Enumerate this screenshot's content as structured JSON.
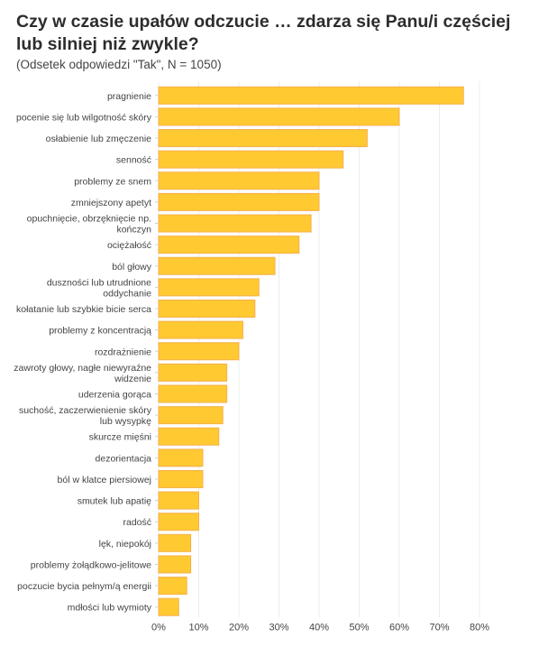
{
  "chart_data": {
    "type": "bar",
    "orientation": "horizontal",
    "title": "Czy w czasie upałów odczucie … zdarza się Panu/i częściej lub silniej niż zwykle?",
    "subtitle": "(Odsetek odpowiedzi \"Tak\", N = 1050)",
    "categories": [
      "pragnienie",
      "pocenie się lub wilgotność skóry",
      "osłabienie lub zmęczenie",
      "senność",
      "problemy ze snem",
      "zmniejszony apetyt",
      "opuchnięcie, obrzęknięcie np. kończyn",
      "ociężałość",
      "ból głowy",
      "duszności lub utrudnione oddychanie",
      "kołatanie lub szybkie bicie serca",
      "problemy z koncentracją",
      "rozdrażnienie",
      "zawroty głowy, nagłe niewyraźne widzenie",
      "uderzenia gorąca",
      "suchość, zaczerwienienie skóry lub wysypkę",
      "skurcze mięśni",
      "dezorientacja",
      "ból w klatce piersiowej",
      "smutek lub apatię",
      "radość",
      "lęk, niepokój",
      "problemy żołądkowo-jelitowe",
      "poczucie bycia pełnym/ą energii",
      "mdłości lub wymioty"
    ],
    "label_lines": [
      [
        "pragnienie"
      ],
      [
        "pocenie się lub wilgotność skóry"
      ],
      [
        "osłabienie lub zmęczenie"
      ],
      [
        "senność"
      ],
      [
        "problemy ze snem"
      ],
      [
        "zmniejszony apetyt"
      ],
      [
        "opuchnięcie, obrzęknięcie np.",
        "kończyn"
      ],
      [
        "ociężałość"
      ],
      [
        "ból głowy"
      ],
      [
        "duszności lub utrudnione",
        "oddychanie"
      ],
      [
        "kołatanie lub szybkie bicie serca"
      ],
      [
        "problemy z koncentracją"
      ],
      [
        "rozdrażnienie"
      ],
      [
        "zawroty głowy, nagłe niewyraźne",
        "widzenie"
      ],
      [
        "uderzenia gorąca"
      ],
      [
        "suchość, zaczerwienienie skóry",
        "lub wysypkę"
      ],
      [
        "skurcze mięśni"
      ],
      [
        "dezorientacja"
      ],
      [
        "ból w klatce piersiowej"
      ],
      [
        "smutek lub apatię"
      ],
      [
        "radość"
      ],
      [
        "lęk, niepokój"
      ],
      [
        "problemy żołądkowo-jelitowe"
      ],
      [
        "poczucie bycia pełnym/ą energii"
      ],
      [
        "mdłości lub wymioty"
      ]
    ],
    "values": [
      76,
      60,
      52,
      46,
      40,
      40,
      38,
      35,
      29,
      25,
      24,
      21,
      20,
      17,
      17,
      16,
      15,
      11,
      11,
      10,
      10,
      8,
      8,
      7,
      5
    ],
    "xlim": [
      0,
      80
    ],
    "xticks": [
      0,
      10,
      20,
      30,
      40,
      50,
      60,
      70,
      80
    ],
    "xtick_labels": [
      "0%",
      "10%",
      "20%",
      "30%",
      "40%",
      "50%",
      "60%",
      "70%",
      "80%"
    ],
    "xlabel": "",
    "ylabel": "",
    "grid": true,
    "bar_color": "#ffc931",
    "bar_edge": "#f5b04a"
  }
}
